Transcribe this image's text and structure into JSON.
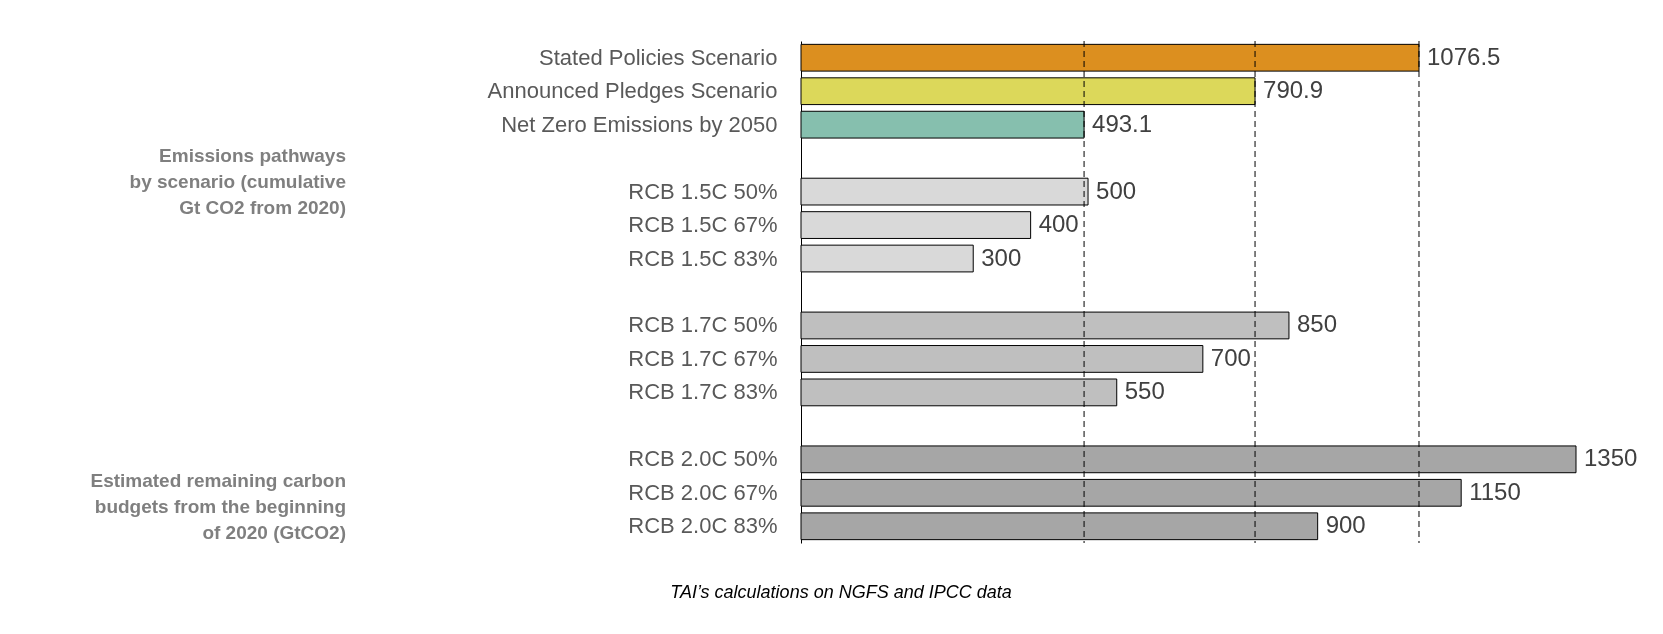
{
  "chart_data": {
    "type": "bar",
    "orientation": "horizontal",
    "data_labels": true,
    "tick_labels": "y",
    "grid": false,
    "categories": [
      "Stated Policies Scenario",
      "Announced Pledges Scenario",
      "Net Zero Emissions by 2050",
      null,
      "RCB 1.5C 50%",
      "RCB 1.5C 67%",
      "RCB 1.5C 83%",
      null,
      "RCB 1.7C 50%",
      "RCB 1.7C 67%",
      "RCB 1.7C 83%",
      null,
      "RCB 2.0C 50%",
      "RCB 2.0C 67%",
      "RCB 2.0C 83%"
    ],
    "values": [
      1076.5,
      790.9,
      493.1,
      null,
      500,
      400,
      300,
      null,
      850,
      700,
      550,
      null,
      1350,
      1150,
      900
    ],
    "colors": [
      "#dc8f1f",
      "#dcd85a",
      "#86bfae",
      null,
      "#d9d9d9",
      "#d9d9d9",
      "#d9d9d9",
      null,
      "#bfbfbf",
      "#bfbfbf",
      "#bfbfbf",
      null,
      "#a6a6a6",
      "#a6a6a6",
      "#a6a6a6"
    ],
    "ref_lines": [
      {
        "axis": "x",
        "value": 493.1,
        "line_style": "dashed"
      },
      {
        "axis": "x",
        "value": 790.9,
        "line_style": "dashed"
      },
      {
        "axis": "x",
        "value": 1076.5,
        "line_style": "dashed"
      }
    ],
    "annotations": [
      "Emissions pathways\nby scenario (cumulative\nGt CO2 from 2020)",
      "Estimated remaining carbon\nbudgets from the beginning\nof 2020 (GtCO2)",
      "TAI’s calculations on NGFS and IPCC data"
    ]
  }
}
